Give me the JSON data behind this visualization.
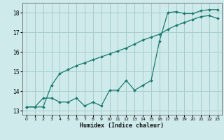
{
  "xlabel": "Humidex (Indice chaleur)",
  "bg_color": "#ceeaea",
  "grid_color": "#a8cccc",
  "line_color": "#1a7a6e",
  "line1_x": [
    0,
    1,
    2,
    3,
    4,
    5,
    6,
    7,
    8,
    9,
    10,
    11,
    12,
    13,
    14,
    15,
    16,
    17,
    18,
    19,
    20,
    21,
    22,
    23
  ],
  "line1_y": [
    13.2,
    13.2,
    13.65,
    13.65,
    13.45,
    13.45,
    13.65,
    13.25,
    13.45,
    13.25,
    14.05,
    14.05,
    14.55,
    14.05,
    14.3,
    14.55,
    16.55,
    18.0,
    18.05,
    17.95,
    17.95,
    18.1,
    18.15,
    18.15
  ],
  "line2_x": [
    0,
    2,
    3,
    4,
    5,
    6,
    7,
    8,
    9,
    10,
    11,
    12,
    13,
    14,
    15,
    16,
    17,
    18,
    19,
    20,
    21,
    22,
    23
  ],
  "line2_y": [
    13.2,
    13.2,
    14.3,
    14.9,
    15.1,
    15.3,
    15.45,
    15.6,
    15.75,
    15.9,
    16.05,
    16.2,
    16.4,
    16.6,
    16.75,
    16.9,
    17.15,
    17.35,
    17.5,
    17.65,
    17.8,
    17.85,
    17.7
  ],
  "ylim": [
    12.8,
    18.5
  ],
  "xlim": [
    -0.5,
    23.5
  ],
  "yticks": [
    13,
    14,
    15,
    16,
    17,
    18
  ],
  "xticks": [
    0,
    1,
    2,
    3,
    4,
    5,
    6,
    7,
    8,
    9,
    10,
    11,
    12,
    13,
    14,
    15,
    16,
    17,
    18,
    19,
    20,
    21,
    22,
    23
  ]
}
